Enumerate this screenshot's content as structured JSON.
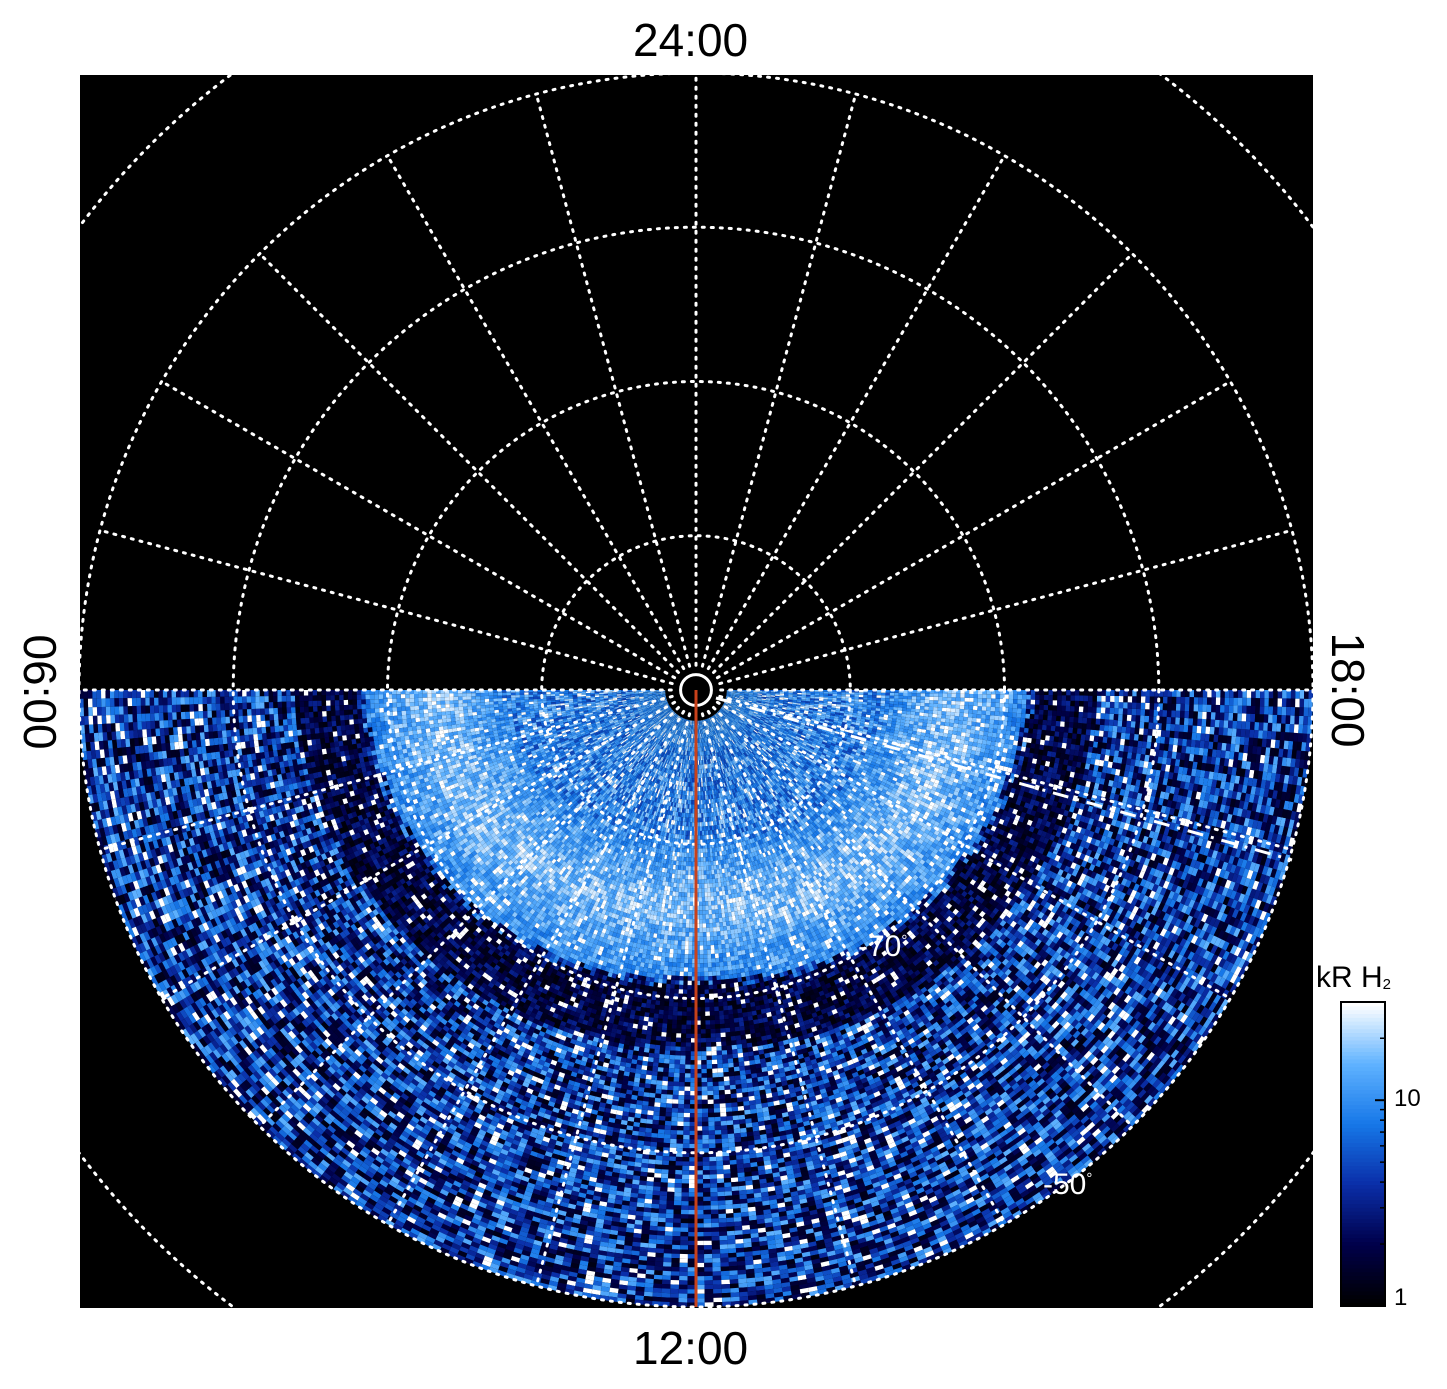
{
  "chart_data": {
    "type": "heatmap",
    "projection": "polar-stereographic",
    "title": "",
    "local_time_labels": {
      "top": "24:00",
      "bottom": "12:00",
      "left": "06:00",
      "right": "18:00"
    },
    "latitude_labels": [
      {
        "value": -70,
        "text": "-70",
        "unit": "°"
      },
      {
        "value": -50,
        "text": "-50",
        "unit": "°"
      }
    ],
    "latitude_grid_deg": [
      -80,
      -70,
      -60,
      -50,
      -40
    ],
    "longitude_grid_step_hours": 1,
    "observed_sector": "dayside (06:00 to 18:00 through 12:00)",
    "main_oval_colatitude_deg": [
      12,
      18
    ],
    "reference_line_local_time": "12:00",
    "reference_line_color": "#c8411a",
    "dashed_line": "from pole towards 18:00 side",
    "colorbar": {
      "label": "kR H",
      "label_subscript": "2",
      "scale": "log",
      "range": [
        1,
        30
      ],
      "ticks": [
        {
          "value": 1,
          "label": "1"
        },
        {
          "value": 10,
          "label": "10"
        }
      ],
      "colors": [
        "#000000",
        "#00004a",
        "#0a2ea8",
        "#1677e8",
        "#5fb2ff",
        "#ffffff"
      ]
    },
    "background_color": "#000000",
    "grid_color": "#ffffff"
  }
}
